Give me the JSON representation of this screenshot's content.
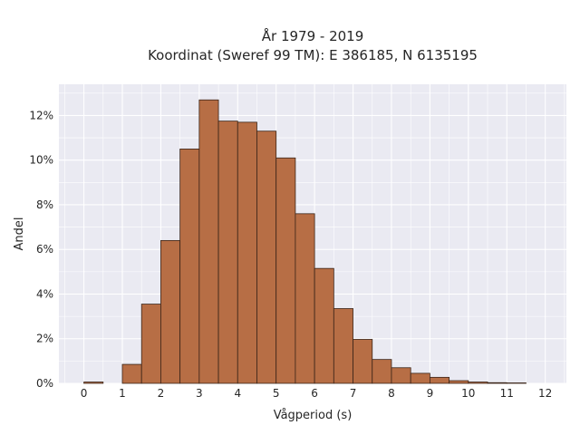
{
  "chart_data": {
    "type": "bar",
    "title_line1": "År 1979 - 2019",
    "title_line2": "Koordinat (Sweref 99 TM): E 386185, N 6135195",
    "xlabel": "Vågperiod (s)",
    "ylabel": "Andel",
    "bin_width": 0.5,
    "bins": [
      {
        "x_start": 0.0,
        "value": 0.06
      },
      {
        "x_start": 0.5,
        "value": 0.0
      },
      {
        "x_start": 1.0,
        "value": 0.85
      },
      {
        "x_start": 1.5,
        "value": 3.55
      },
      {
        "x_start": 2.0,
        "value": 6.4
      },
      {
        "x_start": 2.5,
        "value": 10.5
      },
      {
        "x_start": 3.0,
        "value": 12.7
      },
      {
        "x_start": 3.5,
        "value": 11.75
      },
      {
        "x_start": 4.0,
        "value": 11.7
      },
      {
        "x_start": 4.5,
        "value": 11.3
      },
      {
        "x_start": 5.0,
        "value": 10.1
      },
      {
        "x_start": 5.5,
        "value": 7.6
      },
      {
        "x_start": 6.0,
        "value": 5.15
      },
      {
        "x_start": 6.5,
        "value": 3.35
      },
      {
        "x_start": 7.0,
        "value": 1.97
      },
      {
        "x_start": 7.5,
        "value": 1.07
      },
      {
        "x_start": 8.0,
        "value": 0.7
      },
      {
        "x_start": 8.5,
        "value": 0.45
      },
      {
        "x_start": 9.0,
        "value": 0.27
      },
      {
        "x_start": 9.5,
        "value": 0.12
      },
      {
        "x_start": 10.0,
        "value": 0.06
      },
      {
        "x_start": 10.5,
        "value": 0.03
      },
      {
        "x_start": 11.0,
        "value": 0.02
      }
    ],
    "xlim": [
      -0.65,
      12.55
    ],
    "ylim": [
      0,
      13.4
    ],
    "x_ticks": [
      0,
      1,
      2,
      3,
      4,
      5,
      6,
      7,
      8,
      9,
      10,
      11,
      12
    ],
    "y_ticks": [
      0,
      2,
      4,
      6,
      8,
      10,
      12
    ],
    "y_tick_suffix": "%",
    "grid": true,
    "colors": {
      "bar_fill": "#b76e45",
      "bar_edge": "#3a2418",
      "plot_bg": "#eaeaf2",
      "grid": "#ffffff"
    }
  }
}
